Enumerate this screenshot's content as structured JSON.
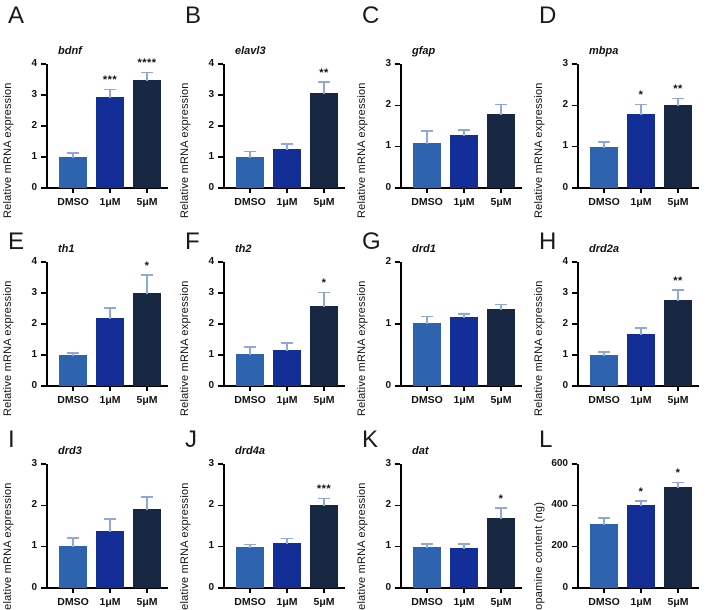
{
  "figure": {
    "categories": [
      "DMSO",
      "1μM",
      "5μM"
    ],
    "bar_colors": [
      "#2e63b0",
      "#132e96",
      "#182843"
    ],
    "error_color": "#8fa8da",
    "axis_color": "#000000",
    "background_color": "#ffffff"
  },
  "chart_data": [
    {
      "type": "bar",
      "letter": "A",
      "title": "bdnf",
      "ylabel": "Relative mRNA  expression",
      "categories": [
        "DMSO",
        "1μM",
        "5μM"
      ],
      "values": [
        1.0,
        2.95,
        3.5
      ],
      "errors": [
        0.1,
        0.2,
        0.2
      ],
      "sig": [
        "",
        "***",
        "****"
      ],
      "ymax": 4,
      "yticks": [
        0,
        1,
        2,
        3,
        4
      ],
      "legend": "none",
      "grid": false
    },
    {
      "type": "bar",
      "letter": "B",
      "title": "elavl3",
      "ylabel": "Relative mRNA  expression",
      "categories": [
        "DMSO",
        "1μM",
        "5μM"
      ],
      "values": [
        1.0,
        1.27,
        3.05
      ],
      "errors": [
        0.15,
        0.13,
        0.35
      ],
      "sig": [
        "",
        "",
        "**"
      ],
      "ymax": 4,
      "yticks": [
        0,
        1,
        2,
        3,
        4
      ],
      "legend": "none",
      "grid": false
    },
    {
      "type": "bar",
      "letter": "C",
      "title": "gfap",
      "ylabel": "Relative mRNA  expression",
      "categories": [
        "DMSO",
        "1μM",
        "5μM"
      ],
      "values": [
        1.08,
        1.28,
        1.8
      ],
      "errors": [
        0.28,
        0.1,
        0.2
      ],
      "sig": [
        "",
        "",
        ""
      ],
      "ymax": 3,
      "yticks": [
        0,
        1,
        2,
        3
      ],
      "legend": "none",
      "grid": false
    },
    {
      "type": "bar",
      "letter": "D",
      "title": "mbpa",
      "ylabel": "Relative mRNA  expression",
      "categories": [
        "DMSO",
        "1μM",
        "5μM"
      ],
      "values": [
        1.0,
        1.8,
        2.02
      ],
      "errors": [
        0.1,
        0.2,
        0.13
      ],
      "sig": [
        "",
        "*",
        "**"
      ],
      "ymax": 3,
      "yticks": [
        0,
        1,
        2,
        3
      ],
      "legend": "none",
      "grid": false
    },
    {
      "type": "bar",
      "letter": "E",
      "title": "th1",
      "ylabel": "Relative mRNA  expression",
      "categories": [
        "DMSO",
        "1μM",
        "5μM"
      ],
      "values": [
        1.0,
        2.2,
        3.0
      ],
      "errors": [
        0.04,
        0.3,
        0.55
      ],
      "sig": [
        "",
        "",
        "*"
      ],
      "ymax": 4,
      "yticks": [
        0,
        1,
        2,
        3,
        4
      ],
      "legend": "none",
      "grid": false
    },
    {
      "type": "bar",
      "letter": "F",
      "title": "th2",
      "ylabel": "Relative mRNA  expression",
      "categories": [
        "DMSO",
        "1μM",
        "5μM"
      ],
      "values": [
        1.03,
        1.15,
        2.57
      ],
      "errors": [
        0.2,
        0.22,
        0.42
      ],
      "sig": [
        "",
        "",
        "*"
      ],
      "ymax": 4,
      "yticks": [
        0,
        1,
        2,
        3,
        4
      ],
      "legend": "none",
      "grid": false
    },
    {
      "type": "bar",
      "letter": "G",
      "title": "drd1",
      "ylabel": "Relative mRNA  expression",
      "categories": [
        "DMSO",
        "1μM",
        "5μM"
      ],
      "values": [
        1.01,
        1.12,
        1.25
      ],
      "errors": [
        0.1,
        0.03,
        0.05
      ],
      "sig": [
        "",
        "",
        ""
      ],
      "ymax": 2,
      "yticks": [
        0,
        1,
        2
      ],
      "legend": "none",
      "grid": false
    },
    {
      "type": "bar",
      "letter": "H",
      "title": "drd2a",
      "ylabel": "Relative mRNA  expression",
      "categories": [
        "DMSO",
        "1μM",
        "5μM"
      ],
      "values": [
        1.0,
        1.68,
        2.77
      ],
      "errors": [
        0.08,
        0.17,
        0.3
      ],
      "sig": [
        "",
        "",
        "**"
      ],
      "ymax": 4,
      "yticks": [
        0,
        1,
        2,
        3,
        4
      ],
      "legend": "none",
      "grid": false
    },
    {
      "type": "bar",
      "letter": "I",
      "title": "drd3",
      "ylabel": "Relative mRNA  expression",
      "categories": [
        "DMSO",
        "1μM",
        "5μM"
      ],
      "values": [
        1.02,
        1.38,
        1.9
      ],
      "errors": [
        0.17,
        0.27,
        0.28
      ],
      "sig": [
        "",
        "",
        ""
      ],
      "ymax": 3,
      "yticks": [
        0,
        1,
        2,
        3
      ],
      "legend": "none",
      "grid": false
    },
    {
      "type": "bar",
      "letter": "J",
      "title": "drd4a",
      "ylabel": "Relative mRNA  expression",
      "categories": [
        "DMSO",
        "1μM",
        "5μM"
      ],
      "values": [
        1.0,
        1.1,
        2.0
      ],
      "errors": [
        0.03,
        0.08,
        0.15
      ],
      "sig": [
        "",
        "",
        "***"
      ],
      "ymax": 3,
      "yticks": [
        0,
        1,
        2,
        3
      ],
      "legend": "none",
      "grid": false
    },
    {
      "type": "bar",
      "letter": "K",
      "title": "dat",
      "ylabel": "Relative mRNA  expression",
      "categories": [
        "DMSO",
        "1μM",
        "5μM"
      ],
      "values": [
        1.0,
        0.98,
        1.7
      ],
      "errors": [
        0.05,
        0.06,
        0.22
      ],
      "sig": [
        "",
        "",
        "*"
      ],
      "ymax": 3,
      "yticks": [
        0,
        1,
        2,
        3
      ],
      "legend": "none",
      "grid": false
    },
    {
      "type": "bar",
      "letter": "L",
      "title": "",
      "ylabel": "Dopamine content  (ng)",
      "categories": [
        "DMSO",
        "1μM",
        "5μM"
      ],
      "values": [
        310,
        402,
        488
      ],
      "errors": [
        25,
        15,
        18
      ],
      "sig": [
        "",
        "*",
        "*"
      ],
      "ymax": 600,
      "yticks": [
        0,
        200,
        400,
        600
      ],
      "legend": "none",
      "grid": false
    }
  ]
}
